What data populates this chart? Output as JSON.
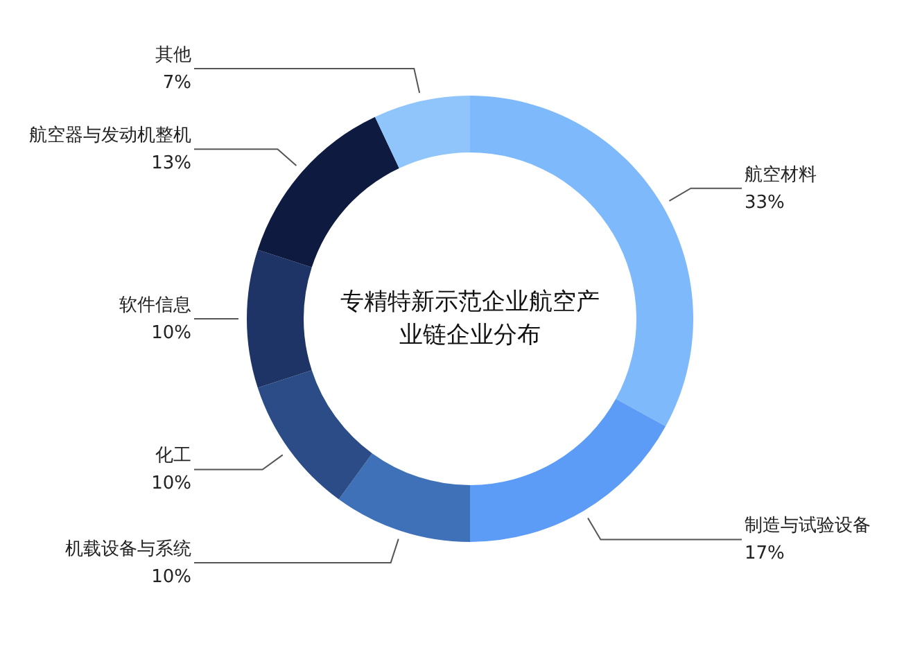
{
  "chart_data": {
    "type": "donut",
    "title": "专精特新示范企业航空产业链企业分布",
    "categories": [
      "航空材料",
      "制造与试验设备",
      "机载设备与系统",
      "化工",
      "软件信息",
      "航空器与发动机整机",
      "其他"
    ],
    "values": [
      33,
      17,
      10,
      10,
      10,
      13,
      7
    ],
    "value_labels": [
      "33%",
      "17%",
      "10%",
      "10%",
      "10%",
      "13%",
      "7%"
    ],
    "colors": [
      "#7db9fb",
      "#5c9cf6",
      "#3f71b9",
      "#2b4c87",
      "#1e3366",
      "#0e1a3f",
      "#8fc5fb"
    ]
  }
}
